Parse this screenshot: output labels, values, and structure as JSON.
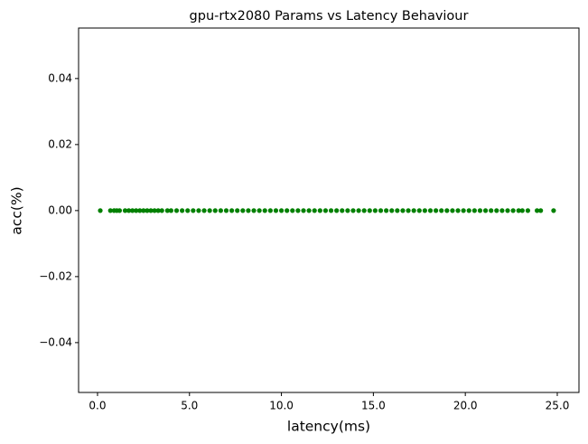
{
  "chart_data": {
    "type": "scatter",
    "title": "gpu-rtx2080 Params vs Latency Behaviour",
    "xlabel": "latency(ms)",
    "ylabel": "acc(%)",
    "color": "#008000",
    "x": [
      0.15,
      0.7,
      0.9,
      1.05,
      1.2,
      1.5,
      1.7,
      1.9,
      2.1,
      2.3,
      2.5,
      2.7,
      2.9,
      3.1,
      3.3,
      3.5,
      3.8,
      4.0,
      4.3,
      4.6,
      4.9,
      5.2,
      5.5,
      5.8,
      6.1,
      6.4,
      6.7,
      7.0,
      7.3,
      7.6,
      7.9,
      8.2,
      8.5,
      8.8,
      9.1,
      9.4,
      9.7,
      10.0,
      10.3,
      10.6,
      10.9,
      11.2,
      11.5,
      11.8,
      12.1,
      12.4,
      12.7,
      13.0,
      13.3,
      13.6,
      13.9,
      14.2,
      14.5,
      14.8,
      15.1,
      15.4,
      15.7,
      16.0,
      16.3,
      16.6,
      16.9,
      17.2,
      17.5,
      17.8,
      18.1,
      18.4,
      18.7,
      19.0,
      19.3,
      19.6,
      19.9,
      20.2,
      20.5,
      20.8,
      21.1,
      21.4,
      21.7,
      22.0,
      22.3,
      22.6,
      22.9,
      23.1,
      23.4,
      23.9,
      24.1,
      24.8
    ],
    "values": [
      0,
      0,
      0,
      0,
      0,
      0,
      0,
      0,
      0,
      0,
      0,
      0,
      0,
      0,
      0,
      0,
      0,
      0,
      0,
      0,
      0,
      0,
      0,
      0,
      0,
      0,
      0,
      0,
      0,
      0,
      0,
      0,
      0,
      0,
      0,
      0,
      0,
      0,
      0,
      0,
      0,
      0,
      0,
      0,
      0,
      0,
      0,
      0,
      0,
      0,
      0,
      0,
      0,
      0,
      0,
      0,
      0,
      0,
      0,
      0,
      0,
      0,
      0,
      0,
      0,
      0,
      0,
      0,
      0,
      0,
      0,
      0,
      0,
      0,
      0,
      0,
      0,
      0,
      0,
      0,
      0,
      0,
      0,
      0,
      0,
      0
    ],
    "xlim": [
      -1.03,
      26.18
    ],
    "ylim": [
      -0.0551,
      0.0553
    ],
    "xticks": [
      {
        "value": 0,
        "label": "0.0"
      },
      {
        "value": 5,
        "label": "5.0"
      },
      {
        "value": 10,
        "label": "10.0"
      },
      {
        "value": 15,
        "label": "15.0"
      },
      {
        "value": 20,
        "label": "20.0"
      },
      {
        "value": 25,
        "label": "25.0"
      }
    ],
    "yticks": [
      {
        "value": -0.04,
        "label": "−0.04"
      },
      {
        "value": -0.02,
        "label": "−0.02"
      },
      {
        "value": 0,
        "label": "0.00"
      },
      {
        "value": 0.02,
        "label": "0.02"
      },
      {
        "value": 0.04,
        "label": "0.04"
      }
    ],
    "grid": false
  }
}
